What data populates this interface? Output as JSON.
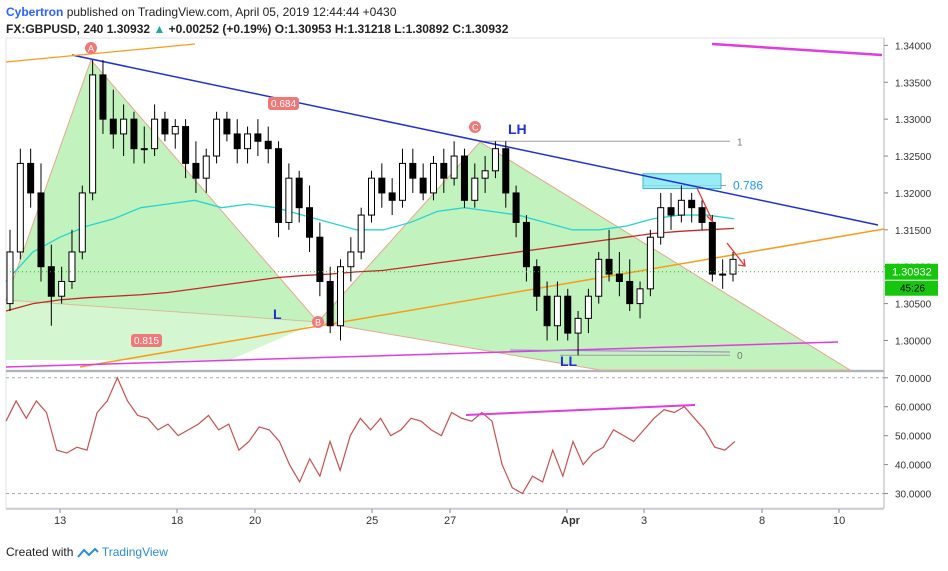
{
  "header": {
    "publisher": "Cybertron",
    "published_text": "published on TradingView.com, April 05, 2019 12:44:44 +0430",
    "symbol": "FX:GBPUSD, 240",
    "last": "1.30932",
    "change_arrow": "▲",
    "change": "+0.00252 (+0.19%)",
    "o_label": "O:",
    "o": "1.30953",
    "h_label": "H:",
    "h": "1.31218",
    "l_label": "L:",
    "l": "1.30892",
    "c_label": "C:",
    "c": "1.30932"
  },
  "footer": {
    "created_with": "Created with",
    "brand": "TradingView"
  },
  "colors": {
    "up_candle": "#000000",
    "down_candle": "#000000",
    "harmonic_fill": "#b7f0b1",
    "rsi_bg": "#d6eed8",
    "price_axis_label": "#16c60c",
    "trend_blue": "#1f2fd6",
    "trend_orange": "#f89c1c",
    "trend_magenta": "#e03ce0",
    "ema_red": "#c62828",
    "ema_cyan": "#27d4d4",
    "fib_label": "#2196f3",
    "point_label": "#f07878",
    "rsi_line": "#c85050"
  },
  "chart_data": [
    {
      "type": "candlestick",
      "symbol": "GBPUSD",
      "timeframe": "240",
      "ylim": [
        1.296,
        1.341
      ],
      "price_ticks": [
        "1.34000",
        "1.33500",
        "1.33000",
        "1.32500",
        "1.32000",
        "1.31500",
        "1.31000",
        "1.30500",
        "1.30000"
      ],
      "x_ticks": [
        "13",
        "18",
        "20",
        "25",
        "27",
        "Apr",
        "3",
        "8",
        "10"
      ],
      "current_price": "1.30932",
      "countdown": "45:26",
      "candles_ohlc": [
        [
          1.305,
          1.315,
          1.304,
          1.312
        ],
        [
          1.312,
          1.326,
          1.311,
          1.324
        ],
        [
          1.324,
          1.326,
          1.318,
          1.32
        ],
        [
          1.32,
          1.324,
          1.308,
          1.31
        ],
        [
          1.31,
          1.313,
          1.302,
          1.306
        ],
        [
          1.306,
          1.31,
          1.305,
          1.308
        ],
        [
          1.308,
          1.315,
          1.307,
          1.312
        ],
        [
          1.312,
          1.321,
          1.311,
          1.32
        ],
        [
          1.32,
          1.338,
          1.319,
          1.336
        ],
        [
          1.336,
          1.338,
          1.328,
          1.33
        ],
        [
          1.33,
          1.334,
          1.326,
          1.328
        ],
        [
          1.328,
          1.332,
          1.325,
          1.33
        ],
        [
          1.33,
          1.331,
          1.324,
          1.326
        ],
        [
          1.326,
          1.329,
          1.324,
          1.326
        ],
        [
          1.326,
          1.332,
          1.325,
          1.33
        ],
        [
          1.33,
          1.331,
          1.327,
          1.328
        ],
        [
          1.328,
          1.33,
          1.326,
          1.329
        ],
        [
          1.329,
          1.33,
          1.322,
          1.324
        ],
        [
          1.324,
          1.327,
          1.32,
          1.322
        ],
        [
          1.322,
          1.326,
          1.32,
          1.325
        ],
        [
          1.325,
          1.331,
          1.324,
          1.33
        ],
        [
          1.33,
          1.331,
          1.327,
          1.328
        ],
        [
          1.328,
          1.33,
          1.324,
          1.326
        ],
        [
          1.326,
          1.329,
          1.324,
          1.328
        ],
        [
          1.328,
          1.33,
          1.325,
          1.327
        ],
        [
          1.327,
          1.329,
          1.324,
          1.326
        ],
        [
          1.326,
          1.327,
          1.314,
          1.316
        ],
        [
          1.316,
          1.324,
          1.315,
          1.322
        ],
        [
          1.322,
          1.323,
          1.316,
          1.318
        ],
        [
          1.318,
          1.321,
          1.312,
          1.314
        ],
        [
          1.314,
          1.316,
          1.306,
          1.308
        ],
        [
          1.308,
          1.31,
          1.301,
          1.302
        ],
        [
          1.302,
          1.311,
          1.3,
          1.31
        ],
        [
          1.31,
          1.314,
          1.308,
          1.312
        ],
        [
          1.312,
          1.318,
          1.311,
          1.317
        ],
        [
          1.317,
          1.323,
          1.316,
          1.322
        ],
        [
          1.322,
          1.324,
          1.318,
          1.32
        ],
        [
          1.32,
          1.322,
          1.317,
          1.319
        ],
        [
          1.319,
          1.326,
          1.318,
          1.324
        ],
        [
          1.324,
          1.326,
          1.32,
          1.322
        ],
        [
          1.322,
          1.324,
          1.319,
          1.32
        ],
        [
          1.32,
          1.325,
          1.319,
          1.324
        ],
        [
          1.324,
          1.326,
          1.32,
          1.322
        ],
        [
          1.322,
          1.327,
          1.321,
          1.325
        ],
        [
          1.325,
          1.326,
          1.318,
          1.319
        ],
        [
          1.319,
          1.324,
          1.318,
          1.322
        ],
        [
          1.322,
          1.325,
          1.32,
          1.323
        ],
        [
          1.323,
          1.327,
          1.322,
          1.326
        ],
        [
          1.326,
          1.327,
          1.318,
          1.32
        ],
        [
          1.32,
          1.321,
          1.314,
          1.316
        ],
        [
          1.316,
          1.317,
          1.308,
          1.31
        ],
        [
          1.31,
          1.311,
          1.304,
          1.306
        ],
        [
          1.306,
          1.308,
          1.3,
          1.302
        ],
        [
          1.302,
          1.308,
          1.3,
          1.306
        ],
        [
          1.306,
          1.307,
          1.3,
          1.301
        ],
        [
          1.301,
          1.304,
          1.298,
          1.303
        ],
        [
          1.303,
          1.307,
          1.301,
          1.306
        ],
        [
          1.306,
          1.312,
          1.305,
          1.311
        ],
        [
          1.311,
          1.315,
          1.308,
          1.309
        ],
        [
          1.309,
          1.312,
          1.306,
          1.308
        ],
        [
          1.308,
          1.311,
          1.304,
          1.305
        ],
        [
          1.305,
          1.308,
          1.303,
          1.307
        ],
        [
          1.307,
          1.315,
          1.306,
          1.314
        ],
        [
          1.314,
          1.32,
          1.313,
          1.318
        ],
        [
          1.318,
          1.32,
          1.315,
          1.317
        ],
        [
          1.317,
          1.321,
          1.316,
          1.319
        ],
        [
          1.319,
          1.32,
          1.316,
          1.318
        ],
        [
          1.318,
          1.319,
          1.315,
          1.316
        ],
        [
          1.316,
          1.317,
          1.308,
          1.309
        ],
        [
          1.309,
          1.311,
          1.307,
          1.309
        ],
        [
          1.309,
          1.312,
          1.308,
          1.311
        ]
      ],
      "series": [
        {
          "values": [
            1.308,
            1.312,
            1.314,
            1.3155,
            1.3165,
            1.318,
            1.3185,
            1.319,
            1.318,
            1.3185,
            1.318,
            1.317,
            1.316,
            1.315,
            1.315,
            1.316,
            1.3175,
            1.318,
            1.3175,
            1.317,
            1.316,
            1.315,
            1.315,
            1.3155,
            1.3165,
            1.317,
            1.317,
            1.3165
          ]
        },
        {
          "values": [
            1.304,
            1.305,
            1.3055,
            1.3058,
            1.306,
            1.3062,
            1.3065,
            1.307,
            1.3075,
            1.308,
            1.3085,
            1.3088,
            1.309,
            1.3093,
            1.3095,
            1.31,
            1.3105,
            1.311,
            1.3115,
            1.312,
            1.3125,
            1.313,
            1.3135,
            1.314,
            1.3145,
            1.3148,
            1.315,
            1.3152
          ]
        }
      ],
      "trendlines": [
        {
          "from": [
            "13",
            1.3385
          ],
          "to": [
            "10",
            1.315
          ]
        },
        {
          "from": [
            "12",
            1.2985
          ],
          "to": [
            "10",
            1.3145
          ]
        },
        {
          "from": [
            "12",
            1.338
          ],
          "to": [
            "14",
            1.34
          ]
        },
        {
          "from": [
            "4",
            1.3405
          ],
          "to": [
            "10",
            1.3395
          ]
        },
        {
          "from": [
            "11",
            1.296
          ],
          "to": [
            "9",
            1.2995
          ]
        },
        {
          "from": [
            "29",
            1.299
          ],
          "to": [
            "9",
            1.2975
          ]
        }
      ],
      "pattern_points": [
        {
          "label": "A",
          "price": 1.3382
        },
        {
          "label": "B",
          "price": 1.302
        },
        {
          "label": "C",
          "price": 1.327
        }
      ],
      "ratio_labels": [
        "0.684",
        "0.815"
      ],
      "annotations": [
        "LH",
        "L",
        "LL"
      ],
      "fib_levels": [
        {
          "label": "1",
          "price": 1.327
        },
        {
          "label": "0.786",
          "price": 1.321
        },
        {
          "label": "0",
          "price": 1.298
        }
      ]
    },
    {
      "type": "line",
      "indicator": "RSI",
      "ylim": [
        25,
        72
      ],
      "band": [
        30,
        70
      ],
      "y_ticks": [
        "70.0000",
        "60.0000",
        "50.0000",
        "40.0000",
        "30.0000"
      ],
      "values": [
        55,
        62,
        56,
        62,
        58,
        45,
        44,
        46,
        45,
        58,
        62,
        70,
        62,
        57,
        56,
        52,
        54,
        50,
        52,
        54,
        57,
        52,
        54,
        45,
        48,
        53,
        52,
        48,
        40,
        34,
        42,
        36,
        48,
        38,
        50,
        56,
        52,
        56,
        50,
        52,
        56,
        55,
        52,
        50,
        58,
        56,
        55,
        58,
        55,
        40,
        32,
        30,
        36,
        34,
        45,
        36,
        48,
        40,
        44,
        46,
        52,
        50,
        48,
        52,
        56,
        59,
        58,
        60,
        56,
        52,
        46,
        45,
        48
      ]
    }
  ]
}
